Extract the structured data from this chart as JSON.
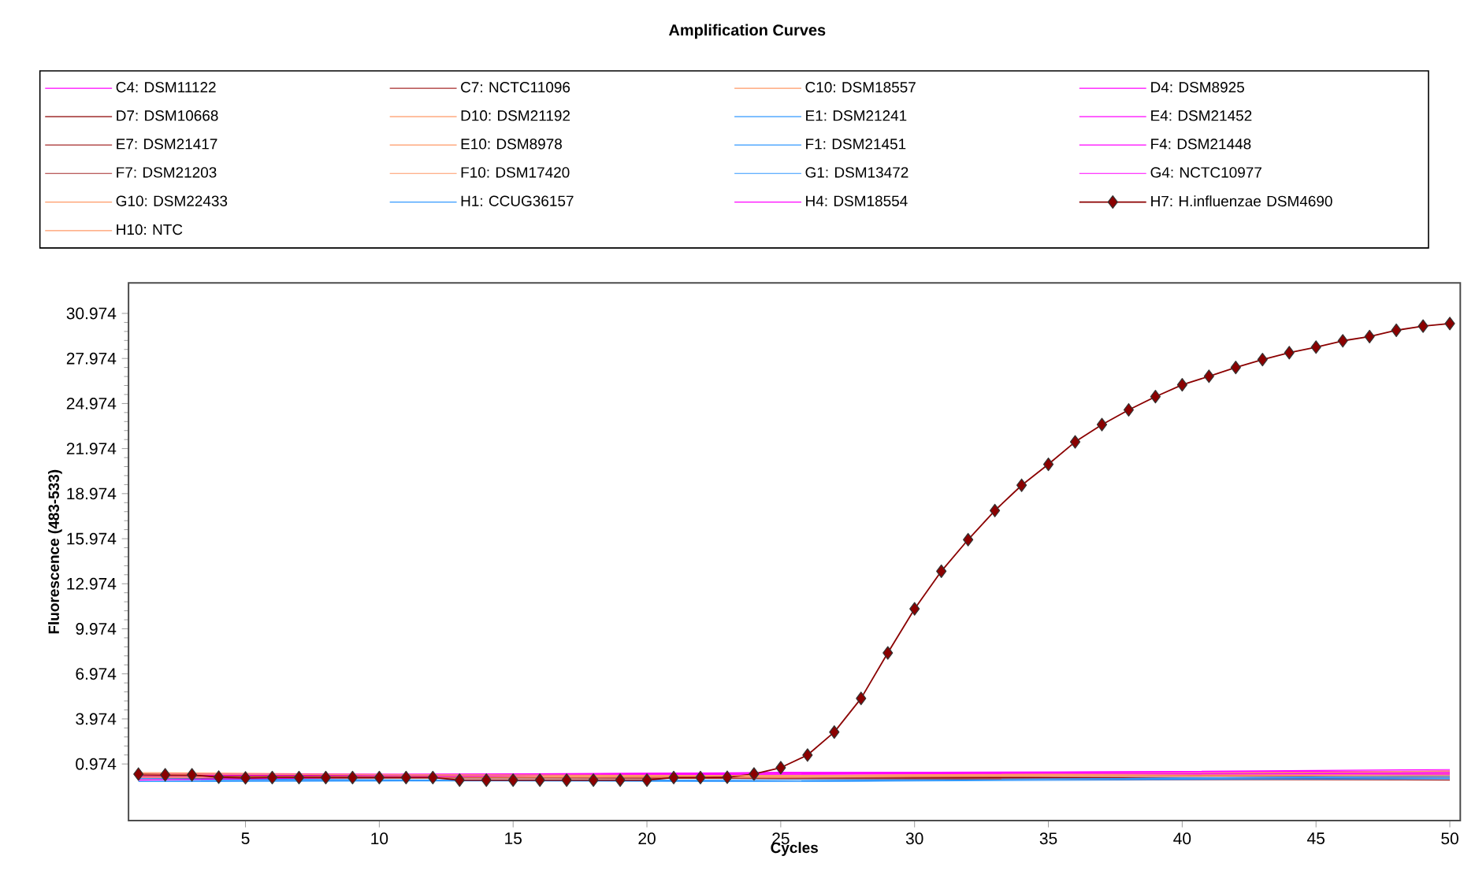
{
  "chart_data": {
    "type": "line",
    "title": "Amplification Curves",
    "xlabel": "Cycles",
    "ylabel": "Fluorescence (483-533)",
    "xlim": [
      0.63,
      50.39
    ],
    "ylim": [
      -2.8,
      33.0
    ],
    "xticks": [
      5,
      10,
      15,
      20,
      25,
      30,
      35,
      40,
      45,
      50
    ],
    "yticks": [
      0.974,
      3.974,
      6.974,
      9.974,
      12.974,
      15.974,
      18.974,
      21.974,
      24.974,
      27.974,
      30.974
    ],
    "legend": "top",
    "line_style": "solid",
    "series": [
      {
        "name": "C4: DSM11122",
        "color": "#ff00ff",
        "marker": "none",
        "x": [
          1,
          25,
          50
        ],
        "values": [
          0.2,
          0.3,
          0.4
        ]
      },
      {
        "name": "C7: NCTC11096",
        "color": "#a52a2a",
        "marker": "none",
        "x": [
          1,
          25,
          50
        ],
        "values": [
          0.1,
          0.0,
          0.1
        ]
      },
      {
        "name": "C10: DSM18557",
        "color": "#ff9966",
        "marker": "none",
        "x": [
          1,
          25,
          50
        ],
        "values": [
          0.2,
          0.2,
          0.3
        ]
      },
      {
        "name": "D4: DSM8925",
        "color": "#ff00ff",
        "marker": "none",
        "x": [
          1,
          25,
          50
        ],
        "values": [
          0.0,
          0.3,
          0.3
        ]
      },
      {
        "name": "D7: DSM10668",
        "color": "#8b0000",
        "marker": "none",
        "x": [
          1,
          25,
          50
        ],
        "values": [
          0.3,
          0.1,
          0.0
        ]
      },
      {
        "name": "D10: DSM21192",
        "color": "#ff9966",
        "marker": "none",
        "x": [
          1,
          25,
          50
        ],
        "values": [
          0.1,
          0.2,
          0.4
        ]
      },
      {
        "name": "E1: DSM21241",
        "color": "#3399ff",
        "marker": "none",
        "x": [
          1,
          25,
          50
        ],
        "values": [
          -0.1,
          -0.1,
          0.1
        ]
      },
      {
        "name": "E4: DSM21452",
        "color": "#ff00ff",
        "marker": "none",
        "x": [
          1,
          25,
          50
        ],
        "values": [
          0.1,
          0.4,
          0.4
        ]
      },
      {
        "name": "E7: DSM21417",
        "color": "#a52a2a",
        "marker": "none",
        "x": [
          1,
          25,
          50
        ],
        "values": [
          0.0,
          0.1,
          0.2
        ]
      },
      {
        "name": "E10: DSM8978",
        "color": "#ff9966",
        "marker": "none",
        "x": [
          1,
          25,
          50
        ],
        "values": [
          0.3,
          0.2,
          0.5
        ]
      },
      {
        "name": "F1: DSM21451",
        "color": "#3399ff",
        "marker": "none",
        "x": [
          1,
          25,
          50
        ],
        "values": [
          0.0,
          -0.2,
          0.0
        ]
      },
      {
        "name": "F4: DSM21448",
        "color": "#ff00ff",
        "marker": "none",
        "x": [
          1,
          25,
          50
        ],
        "values": [
          0.2,
          0.4,
          0.5
        ]
      },
      {
        "name": "F7: DSM21203",
        "color": "#a52a2a",
        "marker": "none",
        "x": [
          1,
          25,
          50
        ],
        "values": [
          0.2,
          0.0,
          -0.1
        ]
      },
      {
        "name": "F10: DSM17420",
        "color": "#ff9966",
        "marker": "none",
        "x": [
          1,
          25,
          50
        ],
        "values": [
          0.4,
          0.1,
          0.3
        ]
      },
      {
        "name": "G1: DSM13472",
        "color": "#3399ff",
        "marker": "none",
        "x": [
          1,
          25,
          50
        ],
        "values": [
          -0.2,
          -0.1,
          0.0
        ]
      },
      {
        "name": "G4: NCTC10977",
        "color": "#ff00ff",
        "marker": "none",
        "x": [
          1,
          25,
          50
        ],
        "values": [
          0.3,
          0.3,
          0.6
        ]
      },
      {
        "name": "G10: DSM22433",
        "color": "#ff9966",
        "marker": "none",
        "x": [
          1,
          25,
          50
        ],
        "values": [
          0.1,
          0.1,
          0.5
        ]
      },
      {
        "name": "H1: CCUG36157",
        "color": "#3399ff",
        "marker": "none",
        "x": [
          1,
          25,
          50
        ],
        "values": [
          -0.1,
          -0.2,
          0.2
        ]
      },
      {
        "name": "H4: DSM18554",
        "color": "#ff00ff",
        "marker": "none",
        "x": [
          1,
          25,
          50
        ],
        "values": [
          -0.1,
          0.4,
          0.3
        ]
      },
      {
        "name": "H7: H.influenzae DSM4690",
        "color": "#8b0000",
        "marker": "diamond",
        "x": [
          1,
          2,
          3,
          4,
          5,
          6,
          7,
          8,
          9,
          10,
          11,
          12,
          13,
          14,
          15,
          16,
          17,
          18,
          19,
          20,
          21,
          22,
          23,
          24,
          25,
          26,
          27,
          28,
          29,
          30,
          31,
          32,
          33,
          34,
          35,
          36,
          37,
          38,
          39,
          40,
          41,
          42,
          43,
          44,
          45,
          46,
          47,
          48,
          49,
          50
        ],
        "values": [
          0.3,
          0.25,
          0.25,
          0.1,
          0.05,
          0.07,
          0.07,
          0.07,
          0.07,
          0.07,
          0.07,
          0.07,
          -0.1,
          -0.1,
          -0.1,
          -0.1,
          -0.1,
          -0.1,
          -0.1,
          -0.1,
          0.07,
          0.07,
          0.09,
          0.31,
          0.73,
          1.57,
          3.1,
          5.34,
          8.37,
          11.3,
          13.81,
          15.91,
          17.85,
          19.53,
          20.93,
          22.42,
          23.57,
          24.55,
          25.43,
          26.22,
          26.79,
          27.37,
          27.9,
          28.36,
          28.73,
          29.15,
          29.43,
          29.85,
          30.13,
          30.3
        ]
      },
      {
        "name": "H10: NTC",
        "color": "#ff9966",
        "marker": "none",
        "x": [
          1,
          25,
          50
        ],
        "values": [
          0.3,
          0.2,
          0.2
        ]
      }
    ]
  }
}
